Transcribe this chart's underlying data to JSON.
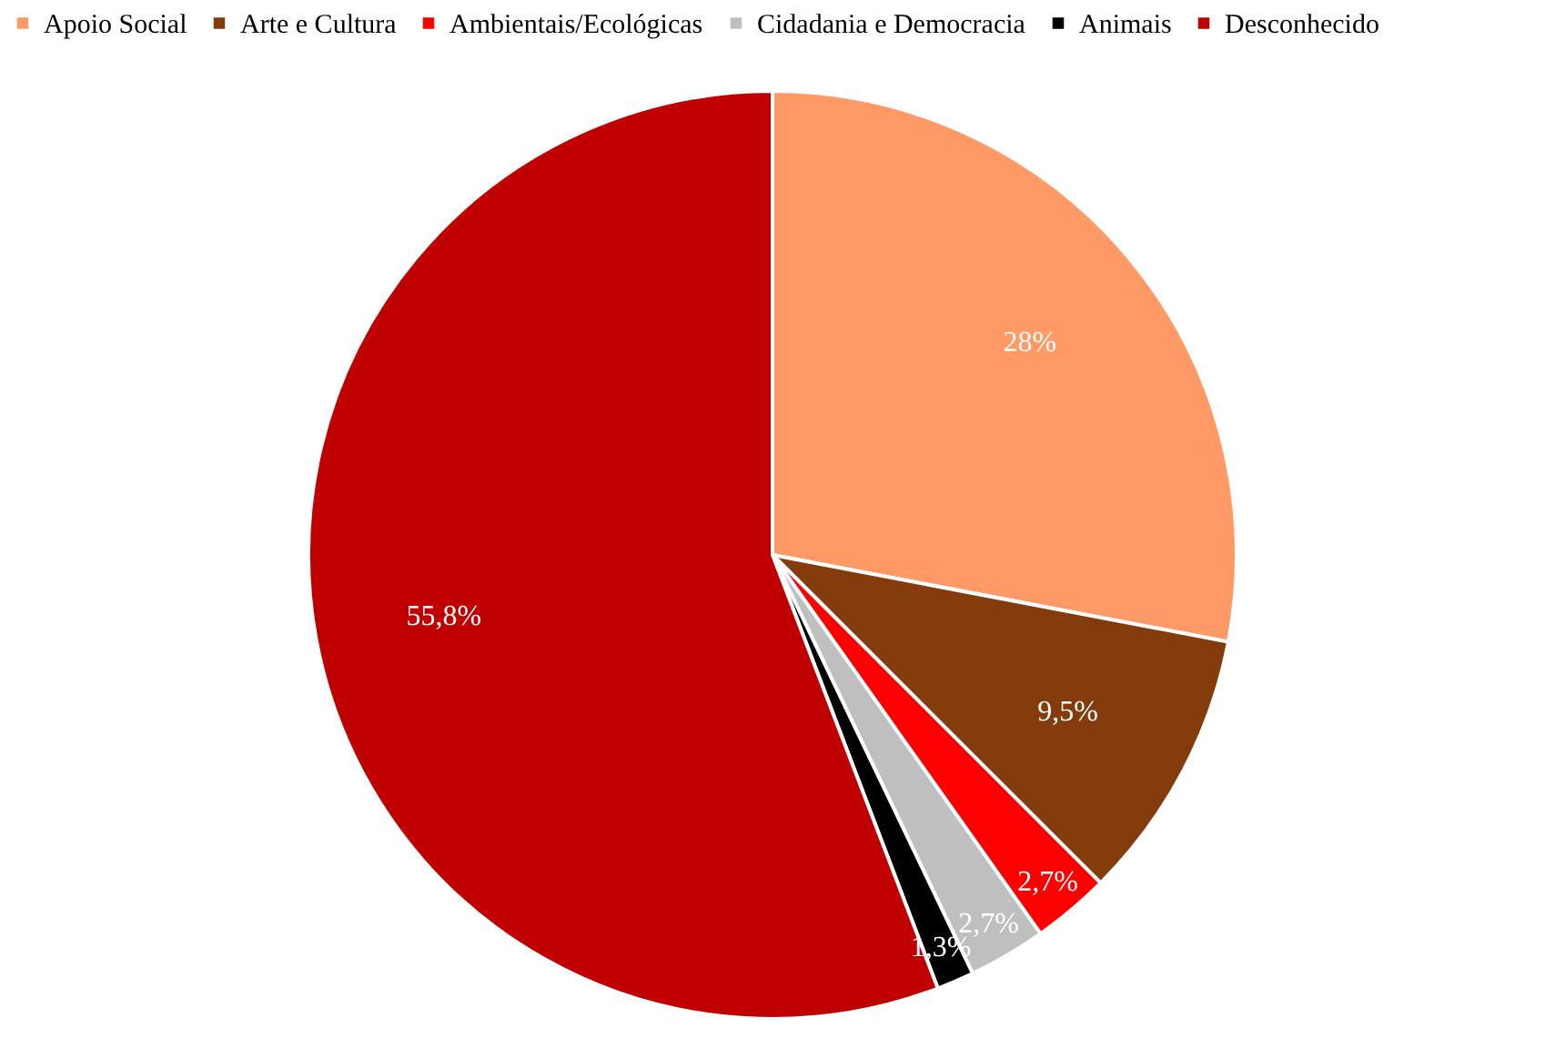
{
  "chart_data": {
    "type": "pie",
    "categories": [
      "Apoio Social",
      "Arte e Cultura",
      "Ambientais/Ecológicas",
      "Cidadania e Democracia",
      "Animais",
      "Desconhecido"
    ],
    "values": [
      28,
      9.5,
      2.7,
      2.7,
      1.3,
      55.8
    ],
    "colors": [
      "#ff9966",
      "#843c0c",
      "#ff0000",
      "#bfbfbf",
      "#000000",
      "#c00000"
    ],
    "value_labels": [
      "28%",
      "9,5%",
      "2,7%",
      "2,7%",
      "1,3%",
      "55,8%"
    ],
    "legend": "top"
  }
}
